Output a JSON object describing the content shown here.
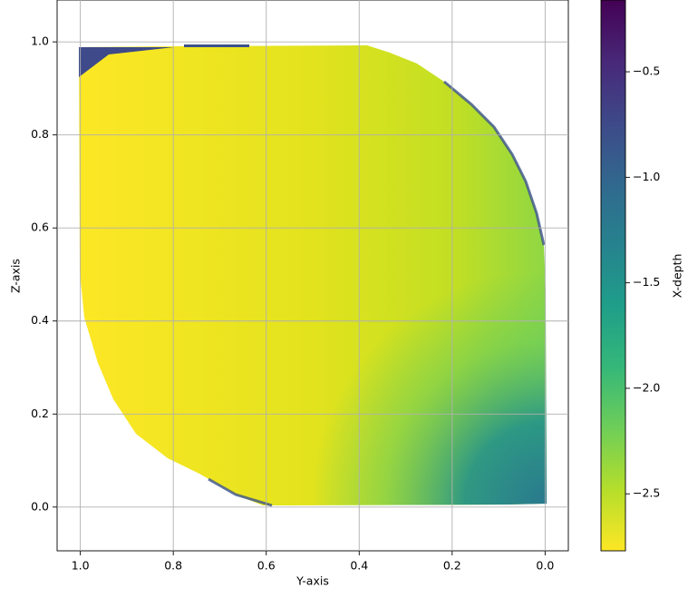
{
  "chart_data": {
    "type": "image",
    "xlabel": "Y-axis",
    "ylabel": "Z-axis",
    "xlim": [
      1.05,
      -0.05
    ],
    "xticks": [
      {
        "value": 1,
        "label": "1.0"
      },
      0.8,
      0.6,
      0.4,
      0.2,
      {
        "value": 0,
        "label": "0.0"
      }
    ],
    "ylim": [
      -0.094,
      1.09
    ],
    "yticks": [
      {
        "value": 0,
        "label": "0.0"
      },
      0.2,
      0.4,
      0.6,
      0.8,
      {
        "value": 1,
        "label": "1.0"
      }
    ],
    "grid": true,
    "colormap": "viridis",
    "colorbar": {
      "label": "X-depth",
      "clim": [
        -2.77,
        -0.16
      ],
      "ticks": [
        {
          "value": -0.5,
          "label": "−0.5"
        },
        {
          "value": -1.0,
          "label": "−1.0"
        },
        {
          "value": -1.5,
          "label": "−1.5"
        },
        {
          "value": -2.0,
          "label": "−2.0"
        },
        {
          "value": -2.5,
          "label": "−2.5"
        }
      ]
    }
  }
}
